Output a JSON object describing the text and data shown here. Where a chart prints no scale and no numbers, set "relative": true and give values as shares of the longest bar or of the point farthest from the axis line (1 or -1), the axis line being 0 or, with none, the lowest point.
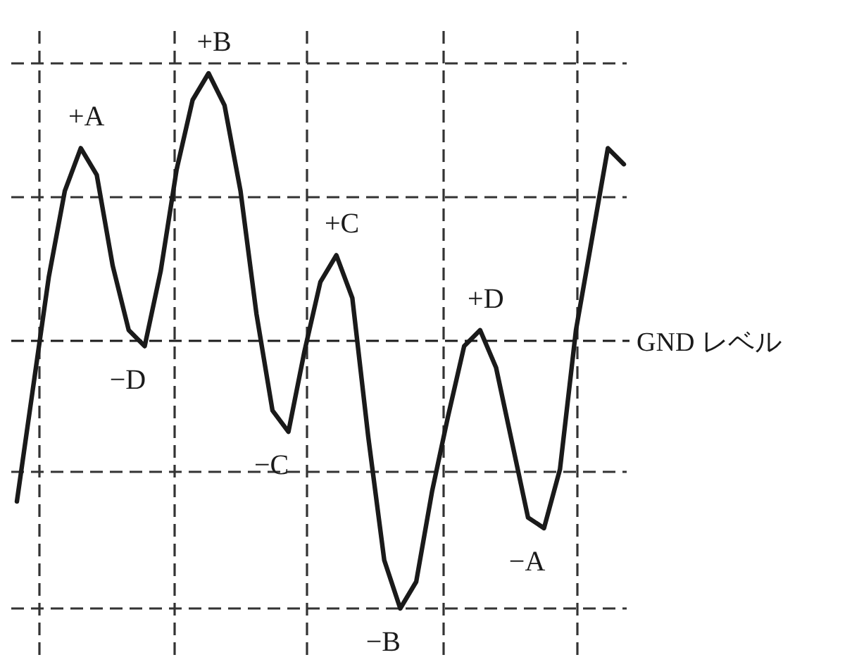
{
  "chart_data": {
    "type": "line",
    "relative": true,
    "grid": true,
    "line_style": "solid",
    "marker": "none",
    "categories": [
      null,
      null,
      null,
      null,
      null,
      null,
      null,
      null,
      null,
      null,
      null,
      null,
      null,
      null,
      null,
      null,
      null,
      null,
      null,
      null,
      null,
      null,
      null,
      null,
      null,
      null,
      null,
      null,
      null,
      null,
      null,
      null,
      null,
      null,
      null,
      null,
      null,
      null,
      null
    ],
    "series": [
      {
        "color": "#1a1a1a",
        "values": [
          0.2,
          0.41,
          0.62,
          0.78,
          0.86,
          0.81,
          0.64,
          0.52,
          0.49,
          0.63,
          0.82,
          0.95,
          1.0,
          0.94,
          0.78,
          0.55,
          0.37,
          0.33,
          0.48,
          0.61,
          0.66,
          0.58,
          0.32,
          0.09,
          0,
          0.05,
          0.22,
          0.36,
          0.49,
          0.52,
          0.45,
          0.31,
          0.17,
          0.15,
          0.26,
          0.52,
          0.69,
          0.86,
          0.83
        ]
      }
    ],
    "ref_lines": [
      {
        "axis": "y",
        "value": 0.5,
        "label": "GND レベル",
        "line_style": "dashed",
        "color": "#1a1a1a"
      }
    ],
    "annotations": [
      "+A",
      "−D",
      "+B",
      "−C",
      "+C",
      "−B",
      "+D",
      "−A"
    ]
  }
}
